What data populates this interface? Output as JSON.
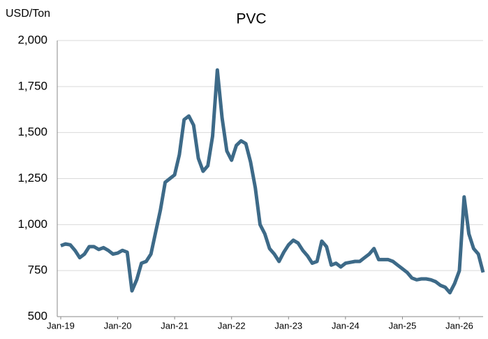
{
  "chart_data": {
    "type": "line",
    "title": "PVC",
    "y_label": "USD/Ton",
    "categories": [
      "Jan-19",
      null,
      null,
      null,
      null,
      null,
      null,
      null,
      null,
      null,
      null,
      null,
      "Jan-20",
      null,
      null,
      null,
      null,
      null,
      null,
      null,
      null,
      null,
      null,
      null,
      "Jan-21",
      null,
      null,
      null,
      null,
      null,
      null,
      null,
      null,
      null,
      null,
      null,
      "Jan-22",
      null,
      null,
      null,
      null,
      null,
      null,
      null,
      null,
      null,
      null,
      null,
      "Jan-23",
      null,
      null,
      null,
      null,
      null,
      null,
      null,
      null,
      null,
      null,
      null,
      "Jan-24",
      null,
      null,
      null,
      null,
      null,
      null,
      null,
      null,
      null,
      null,
      null,
      "Jan-25",
      null,
      null,
      null,
      null,
      null,
      null,
      null,
      null,
      null,
      null,
      null,
      "Jan-26",
      null,
      null,
      null,
      null,
      null
    ],
    "series": [
      {
        "name": "PVC",
        "color": "#3d6a88",
        "values": [
          885,
          895,
          890,
          860,
          820,
          840,
          880,
          880,
          865,
          875,
          860,
          840,
          845,
          860,
          850,
          640,
          700,
          790,
          800,
          840,
          960,
          1080,
          1230,
          1250,
          1270,
          1380,
          1570,
          1590,
          1540,
          1360,
          1290,
          1320,
          1480,
          1840,
          1580,
          1400,
          1350,
          1430,
          1455,
          1440,
          1340,
          1200,
          1000,
          950,
          870,
          840,
          800,
          850,
          890,
          915,
          900,
          860,
          830,
          790,
          800,
          910,
          880,
          780,
          790,
          770,
          790,
          795,
          800,
          800,
          820,
          840,
          870,
          810,
          810,
          810,
          800,
          780,
          760,
          740,
          710,
          700,
          705,
          705,
          700,
          690,
          670,
          660,
          630,
          680,
          750,
          1150,
          950,
          870,
          840,
          740
        ]
      }
    ],
    "ylim": [
      500,
      2000
    ],
    "yticks": [
      500,
      750,
      {
        "value": 1000,
        "label": "1,000"
      },
      {
        "value": 1250,
        "label": "1,250"
      },
      {
        "value": 1500,
        "label": "1,500"
      },
      {
        "value": 1750,
        "label": "1,750"
      },
      {
        "value": 2000,
        "label": "2,000"
      }
    ],
    "grid": true
  }
}
